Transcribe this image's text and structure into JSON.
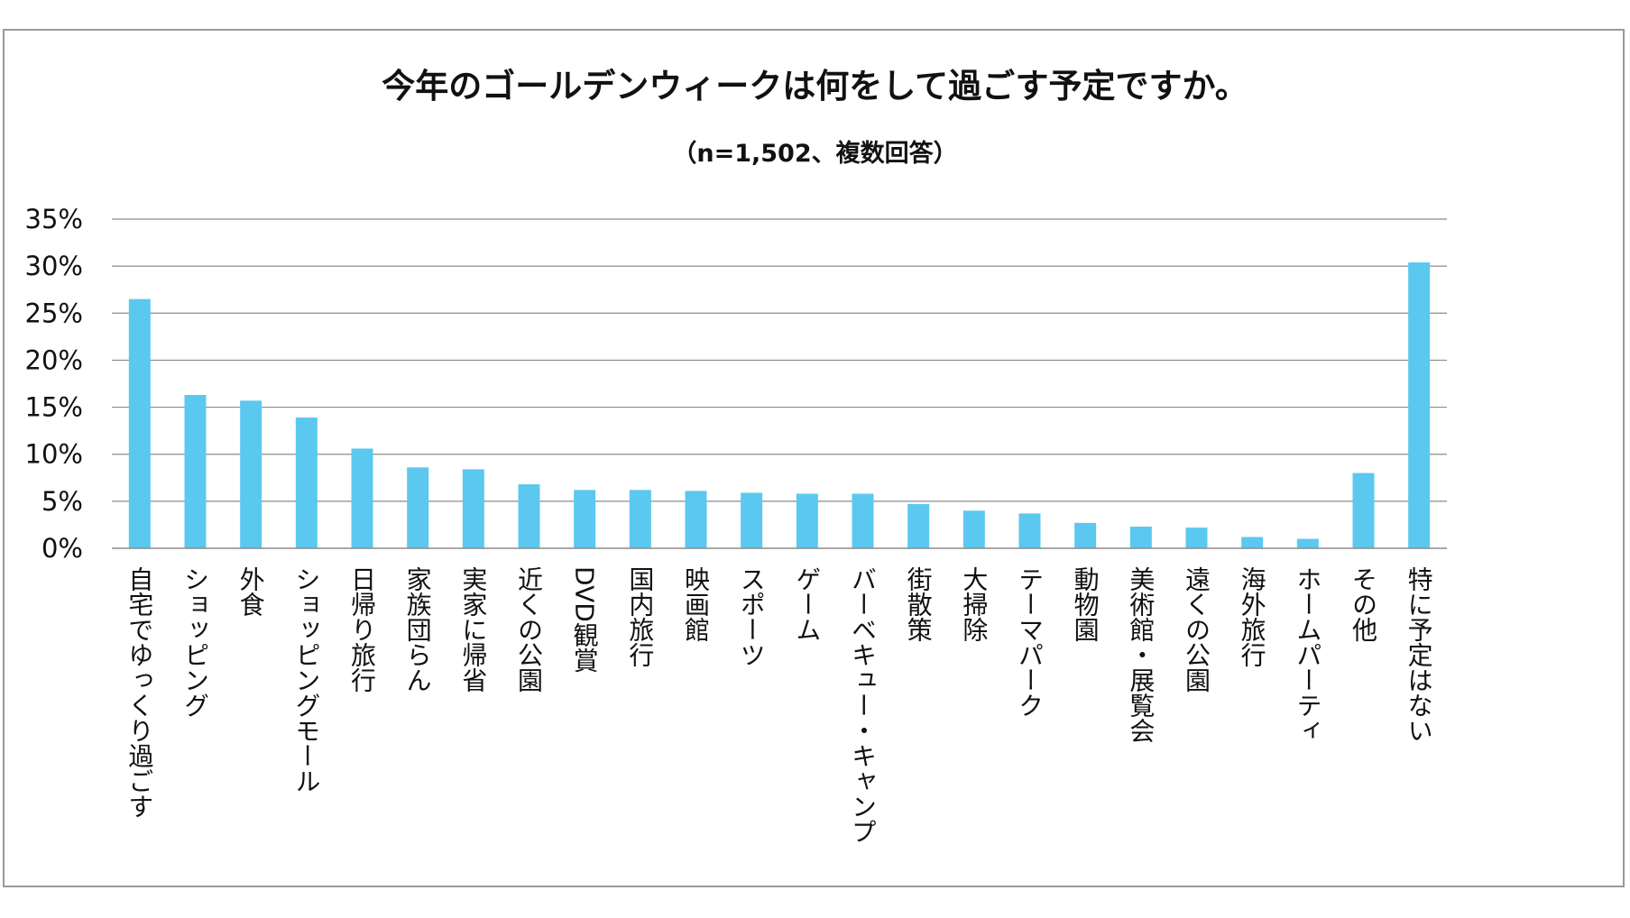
{
  "chart_data": {
    "type": "bar",
    "title": "今年のゴールデンウィークは何をして過ごす予定ですか。",
    "subtitle": "（n=1,502、複数回答）",
    "xlabel": "",
    "ylabel": "",
    "ylim": [
      0,
      35
    ],
    "y_ticks": [
      0,
      5,
      10,
      15,
      20,
      25,
      30,
      35
    ],
    "y_tick_labels": [
      "0%",
      "5%",
      "10%",
      "15%",
      "20%",
      "25%",
      "30%",
      "35%"
    ],
    "grid": true,
    "legend": "none",
    "bar_color": "#5bc8f0",
    "categories": [
      "自宅でゆっくり過ごす",
      "ショッピング",
      "外食",
      "ショッピングモール",
      "日帰り旅行",
      "家族団らん",
      "実家に帰省",
      "近くの公園",
      "DVD観賞",
      "国内旅行",
      "映画館",
      "スポーツ",
      "ゲーム",
      "バーベキュー・キャンプ",
      "街散策",
      "大掃除",
      "テーマパーク",
      "動物園",
      "美術館・展覧会",
      "遠くの公園",
      "海外旅行",
      "ホームパーティ",
      "その他",
      "特に予定はない"
    ],
    "values": [
      26.5,
      16.3,
      15.7,
      13.9,
      10.6,
      8.6,
      8.4,
      6.8,
      6.2,
      6.2,
      6.1,
      5.9,
      5.8,
      5.8,
      4.7,
      4.0,
      3.7,
      2.7,
      2.3,
      2.2,
      1.2,
      1.0,
      8.0,
      30.4
    ]
  }
}
